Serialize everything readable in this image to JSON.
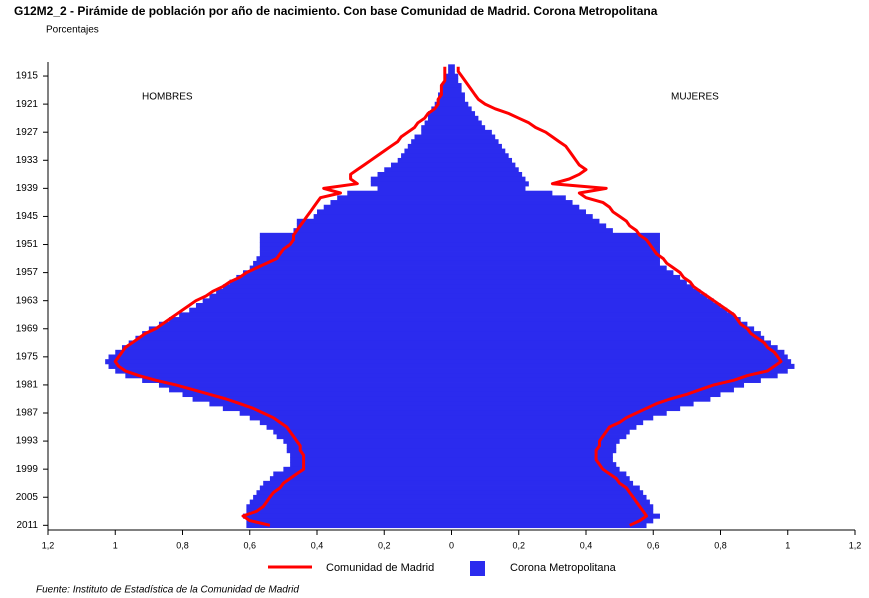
{
  "chart_data": {
    "type": "pyramid",
    "title": "G12M2_2 - Pirámide de población por año de nacimiento. Con base Comunidad de Madrid. Corona Metropolitana",
    "subtitle": "Porcentajes",
    "left_label": "HOMBRES",
    "right_label": "MUJERES",
    "source": "Fuente: Instituto de Estadística de la Comunidad de Madrid",
    "years": [
      1913,
      1914,
      1915,
      1916,
      1917,
      1918,
      1919,
      1920,
      1921,
      1922,
      1923,
      1924,
      1925,
      1926,
      1927,
      1928,
      1929,
      1930,
      1931,
      1932,
      1933,
      1934,
      1935,
      1936,
      1937,
      1938,
      1939,
      1940,
      1941,
      1942,
      1943,
      1944,
      1945,
      1946,
      1947,
      1948,
      1949,
      1950,
      1951,
      1952,
      1953,
      1954,
      1955,
      1956,
      1957,
      1958,
      1959,
      1960,
      1961,
      1962,
      1963,
      1964,
      1965,
      1966,
      1967,
      1968,
      1969,
      1970,
      1971,
      1972,
      1973,
      1974,
      1975,
      1976,
      1977,
      1978,
      1979,
      1980,
      1981,
      1982,
      1983,
      1984,
      1985,
      1986,
      1987,
      1988,
      1989,
      1990,
      1991,
      1992,
      1993,
      1994,
      1995,
      1996,
      1997,
      1998,
      1999,
      2000,
      2001,
      2002,
      2003,
      2004,
      2005,
      2006,
      2007,
      2008,
      2009,
      2010,
      2011
    ],
    "ylim": [
      1912,
      2012
    ],
    "yticks": [
      1915,
      1921,
      1927,
      1933,
      1939,
      1945,
      1951,
      1957,
      1963,
      1969,
      1975,
      1981,
      1987,
      1993,
      1999,
      2005,
      2011
    ],
    "xlim": [
      -1.2,
      1.2
    ],
    "xticks": [
      {
        "value": -1.2,
        "label": "1,2"
      },
      {
        "value": -1,
        "label": "1"
      },
      {
        "value": -0.8,
        "label": "0,8"
      },
      {
        "value": -0.6,
        "label": "0,6"
      },
      {
        "value": -0.4,
        "label": "0,4"
      },
      {
        "value": -0.2,
        "label": "0,2"
      },
      0,
      {
        "value": 0.2,
        "label": "0,2"
      },
      {
        "value": 0.4,
        "label": "0,4"
      },
      {
        "value": 0.6,
        "label": "0,6"
      },
      {
        "value": 0.8,
        "label": "0,8"
      },
      {
        "value": 1,
        "label": "1"
      },
      {
        "value": 1.2,
        "label": "1,2"
      }
    ],
    "series": [
      {
        "name": "Comunidad de Madrid",
        "color": "#ff0000",
        "style": "line",
        "men": [
          0.02,
          0.02,
          0.02,
          0.02,
          0.03,
          0.03,
          0.03,
          0.04,
          0.04,
          0.05,
          0.07,
          0.08,
          0.1,
          0.11,
          0.13,
          0.15,
          0.16,
          0.18,
          0.2,
          0.22,
          0.24,
          0.26,
          0.28,
          0.3,
          0.3,
          0.28,
          0.38,
          0.33,
          0.39,
          0.4,
          0.41,
          0.42,
          0.43,
          0.44,
          0.45,
          0.46,
          0.47,
          0.47,
          0.48,
          0.5,
          0.51,
          0.52,
          0.55,
          0.58,
          0.61,
          0.63,
          0.66,
          0.68,
          0.71,
          0.73,
          0.76,
          0.78,
          0.8,
          0.82,
          0.84,
          0.86,
          0.88,
          0.91,
          0.93,
          0.95,
          0.97,
          0.98,
          0.99,
          1.0,
          0.99,
          0.97,
          0.93,
          0.88,
          0.82,
          0.77,
          0.72,
          0.67,
          0.63,
          0.59,
          0.56,
          0.53,
          0.51,
          0.49,
          0.48,
          0.47,
          0.46,
          0.45,
          0.45,
          0.44,
          0.44,
          0.44,
          0.44,
          0.46,
          0.48,
          0.5,
          0.51,
          0.53,
          0.54,
          0.55,
          0.56,
          0.58,
          0.62,
          0.6,
          0.54
        ],
        "women": [
          0.02,
          0.02,
          0.03,
          0.04,
          0.05,
          0.06,
          0.07,
          0.08,
          0.1,
          0.13,
          0.17,
          0.2,
          0.23,
          0.25,
          0.28,
          0.3,
          0.32,
          0.34,
          0.35,
          0.36,
          0.37,
          0.38,
          0.4,
          0.38,
          0.35,
          0.3,
          0.46,
          0.38,
          0.4,
          0.45,
          0.47,
          0.48,
          0.5,
          0.52,
          0.53,
          0.55,
          0.56,
          0.58,
          0.59,
          0.6,
          0.61,
          0.63,
          0.64,
          0.66,
          0.68,
          0.69,
          0.71,
          0.72,
          0.74,
          0.76,
          0.78,
          0.8,
          0.82,
          0.84,
          0.85,
          0.86,
          0.88,
          0.89,
          0.91,
          0.93,
          0.94,
          0.96,
          0.97,
          0.98,
          0.96,
          0.94,
          0.88,
          0.84,
          0.78,
          0.74,
          0.7,
          0.65,
          0.61,
          0.58,
          0.55,
          0.52,
          0.5,
          0.47,
          0.46,
          0.45,
          0.44,
          0.44,
          0.43,
          0.43,
          0.43,
          0.44,
          0.45,
          0.47,
          0.49,
          0.5,
          0.52,
          0.53,
          0.54,
          0.55,
          0.56,
          0.57,
          0.58,
          0.56,
          0.53
        ]
      },
      {
        "name": "Corona Metropolitana",
        "color": "#2b2bee",
        "style": "bar",
        "men": [
          0.01,
          0.01,
          0.02,
          0.02,
          0.03,
          0.03,
          0.04,
          0.04,
          0.05,
          0.06,
          0.07,
          0.07,
          0.08,
          0.09,
          0.09,
          0.11,
          0.12,
          0.13,
          0.14,
          0.15,
          0.16,
          0.18,
          0.2,
          0.22,
          0.24,
          0.24,
          0.22,
          0.31,
          0.34,
          0.36,
          0.38,
          0.4,
          0.41,
          0.46,
          0.46,
          0.47,
          0.57,
          0.57,
          0.57,
          0.57,
          0.57,
          0.58,
          0.59,
          0.6,
          0.62,
          0.64,
          0.66,
          0.68,
          0.7,
          0.72,
          0.74,
          0.76,
          0.78,
          0.81,
          0.84,
          0.87,
          0.9,
          0.92,
          0.94,
          0.96,
          0.98,
          1.0,
          1.02,
          1.03,
          1.02,
          1.0,
          0.97,
          0.92,
          0.87,
          0.84,
          0.8,
          0.77,
          0.72,
          0.68,
          0.63,
          0.6,
          0.57,
          0.55,
          0.53,
          0.52,
          0.5,
          0.49,
          0.49,
          0.48,
          0.48,
          0.48,
          0.5,
          0.53,
          0.54,
          0.56,
          0.57,
          0.58,
          0.59,
          0.6,
          0.61,
          0.61,
          0.62,
          0.61,
          0.61
        ],
        "women": [
          0.01,
          0.01,
          0.02,
          0.02,
          0.03,
          0.03,
          0.04,
          0.04,
          0.05,
          0.06,
          0.07,
          0.08,
          0.09,
          0.1,
          0.12,
          0.13,
          0.14,
          0.15,
          0.16,
          0.17,
          0.18,
          0.19,
          0.2,
          0.21,
          0.22,
          0.23,
          0.22,
          0.3,
          0.34,
          0.36,
          0.38,
          0.4,
          0.42,
          0.44,
          0.46,
          0.48,
          0.62,
          0.62,
          0.62,
          0.62,
          0.62,
          0.62,
          0.62,
          0.64,
          0.66,
          0.68,
          0.7,
          0.72,
          0.74,
          0.76,
          0.78,
          0.8,
          0.82,
          0.84,
          0.86,
          0.88,
          0.9,
          0.92,
          0.93,
          0.95,
          0.97,
          0.99,
          1.0,
          1.01,
          1.02,
          1.0,
          0.97,
          0.92,
          0.87,
          0.84,
          0.8,
          0.77,
          0.72,
          0.68,
          0.64,
          0.6,
          0.57,
          0.55,
          0.53,
          0.52,
          0.5,
          0.49,
          0.49,
          0.48,
          0.48,
          0.49,
          0.5,
          0.52,
          0.53,
          0.54,
          0.56,
          0.57,
          0.58,
          0.59,
          0.6,
          0.6,
          0.62,
          0.6,
          0.58
        ]
      }
    ]
  }
}
